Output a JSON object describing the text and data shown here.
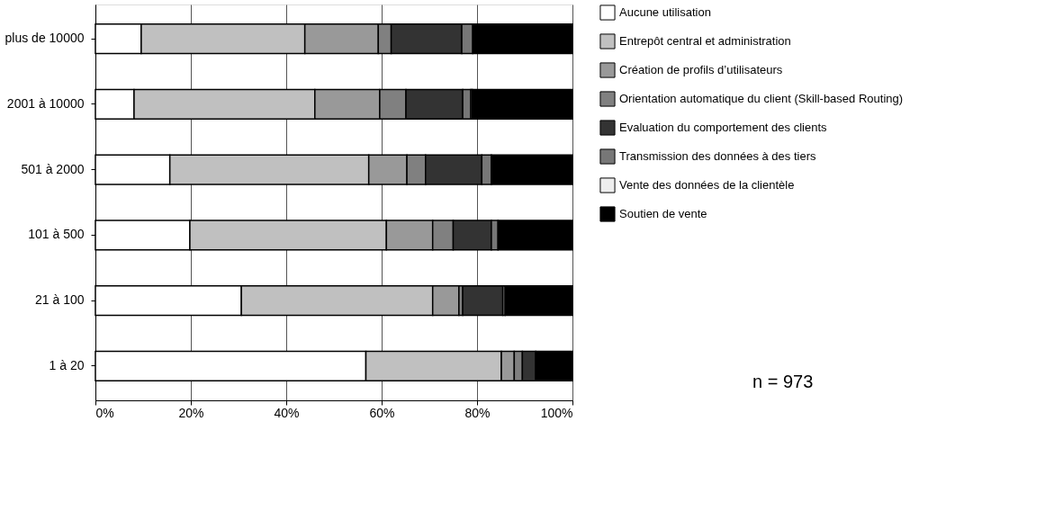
{
  "chart_data": {
    "type": "bar",
    "orientation": "horizontal",
    "stacked": true,
    "categories": [
      "plus de 10000",
      "2001 à 10000",
      "501 à 2000",
      "101 à 500",
      "21 à 100",
      "1 à 20"
    ],
    "series": [
      {
        "name": "Aucune utilisation",
        "color": "#ffffff",
        "values": [
          9.6,
          8.1,
          15.6,
          19.8,
          30.6,
          56.7
        ]
      },
      {
        "name": "Entrepôt central et administration",
        "color": "#c0c0c0",
        "values": [
          34.3,
          37.9,
          41.7,
          41.2,
          40.1,
          28.4
        ]
      },
      {
        "name": "Création de profils d’utilisateurs",
        "color": "#999999",
        "values": [
          15.4,
          13.6,
          8.0,
          9.7,
          5.5,
          2.7
        ]
      },
      {
        "name": "Orientation automatique du client (Skill-based Routing)",
        "color": "#808080",
        "values": [
          2.7,
          5.5,
          3.9,
          4.3,
          0.8,
          1.7
        ]
      },
      {
        "name": "Evaluation du comportement des clients",
        "color": "#333333",
        "values": [
          14.8,
          11.9,
          11.8,
          8.0,
          8.4,
          2.8
        ]
      },
      {
        "name": "Transmission des données à des tiers",
        "color": "#777777",
        "values": [
          2.3,
          1.7,
          2.0,
          1.4,
          0.5,
          null
        ]
      },
      {
        "name": "Vente des données de la clientèle",
        "color": "#eeeeee",
        "values": [
          null,
          0.3,
          null,
          null,
          null,
          null
        ]
      },
      {
        "name": "Soutien de vente",
        "color": "#000000",
        "values": [
          20.9,
          21.0,
          17.0,
          15.6,
          14.1,
          7.7
        ]
      }
    ],
    "xlim": [
      0,
      100
    ],
    "xticks": [
      {
        "value": 0,
        "label": "0%"
      },
      {
        "value": 20,
        "label": "20%"
      },
      {
        "value": 40,
        "label": "40%"
      },
      {
        "value": 60,
        "label": "60%"
      },
      {
        "value": 80,
        "label": "80%"
      },
      {
        "value": 100,
        "label": "100%"
      }
    ],
    "grid": "x",
    "legend": "right",
    "annotations": [
      "n = 973"
    ]
  }
}
